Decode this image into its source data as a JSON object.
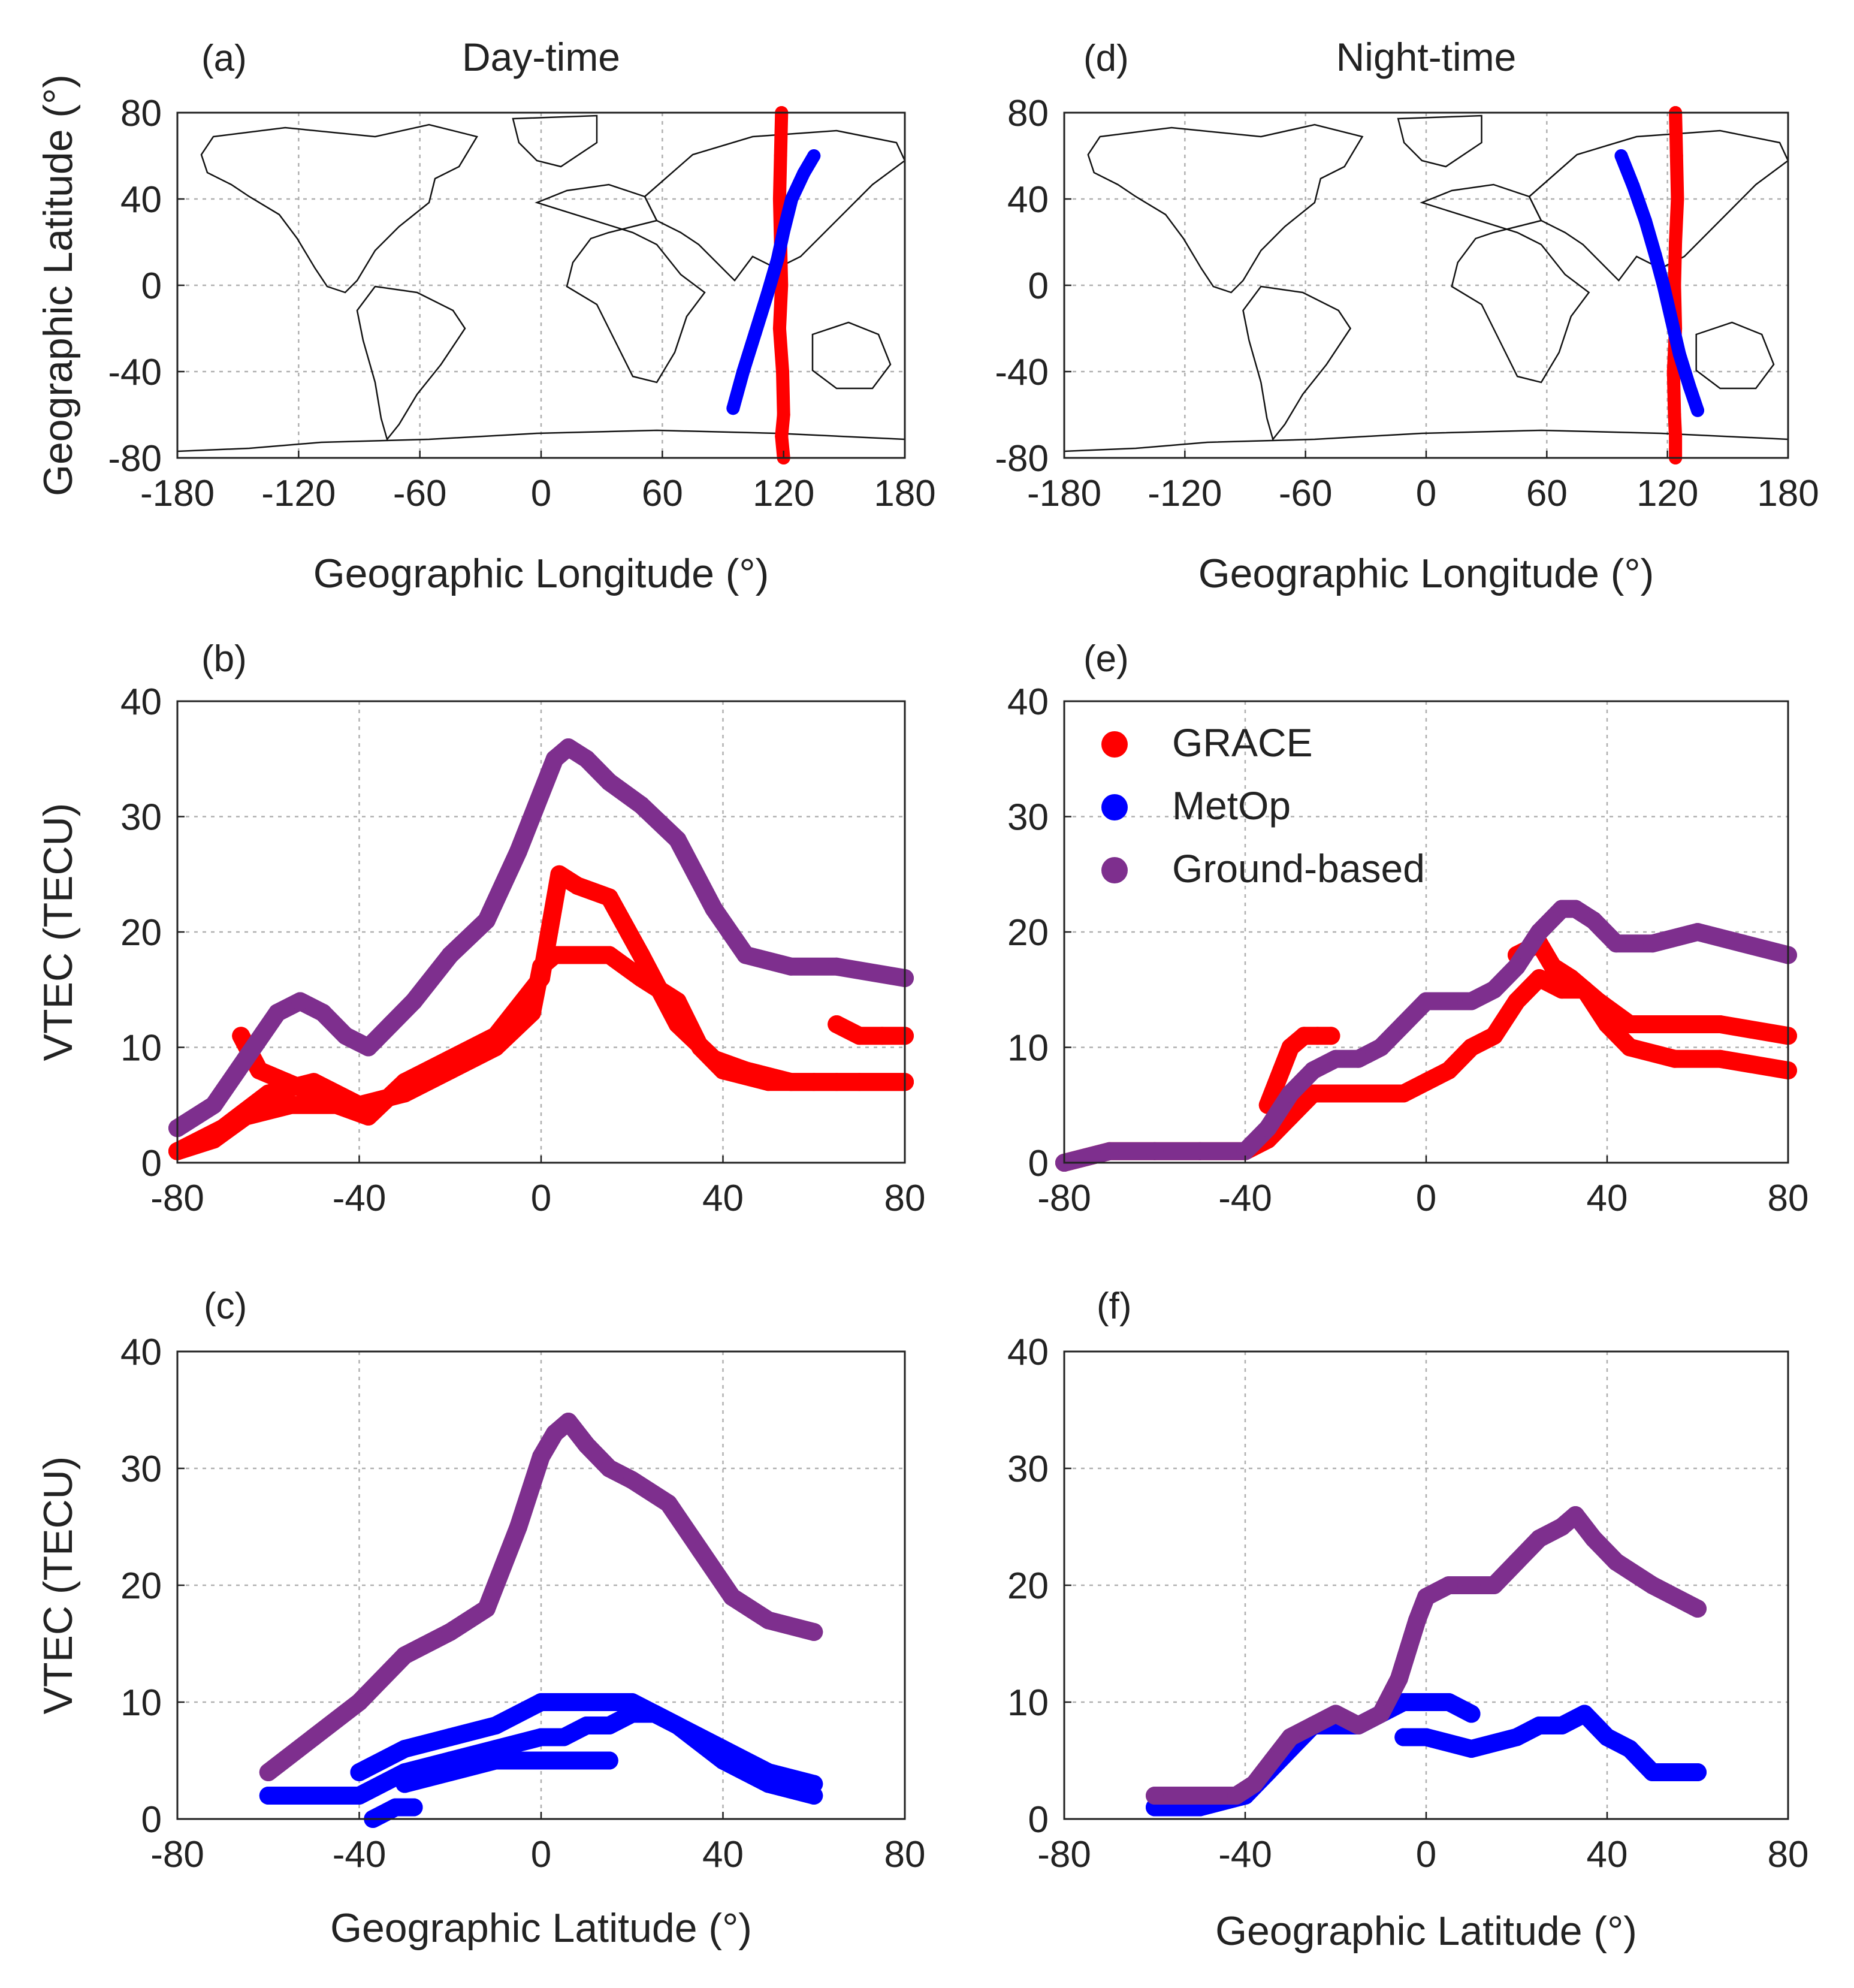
{
  "figure": {
    "colors": {
      "grace": "#ff0000",
      "metop": "#0000ff",
      "ground": "#7e2f8e",
      "grid": "#b0b0b0",
      "axis": "#222222",
      "coast": "#111111"
    }
  },
  "legend": {
    "items": [
      {
        "label": "GRACE",
        "series_key": "grace"
      },
      {
        "label": "MetOp",
        "series_key": "metop"
      },
      {
        "label": "Ground-based",
        "series_key": "ground"
      }
    ]
  },
  "chart_data": [
    {
      "id": "a",
      "panel_label": "(a)",
      "title": "Day-time",
      "type": "scatter",
      "xlabel": "Geographic Longitude (°)",
      "ylabel": "Geographic Latitude (°)",
      "xlim": [
        -180,
        180
      ],
      "ylim": [
        -80,
        80
      ],
      "xticks": [
        -180,
        -120,
        -60,
        0,
        60,
        120,
        180
      ],
      "yticks": [
        -80,
        -40,
        0,
        40,
        80
      ],
      "map": "world-coastline",
      "grid": true,
      "series": [
        {
          "name": "GRACE",
          "key": "grace",
          "x": [
            119,
            118.5,
            118,
            118.5,
            119,
            118,
            119.5,
            120,
            119,
            120
          ],
          "y": [
            80,
            60,
            40,
            20,
            0,
            -20,
            -40,
            -60,
            -70,
            -80
          ]
        },
        {
          "name": "MetOp",
          "key": "metop",
          "x": [
            95,
            100,
            106,
            112,
            117,
            120,
            124,
            130,
            135
          ],
          "y": [
            -57,
            -40,
            -22,
            -4,
            12,
            25,
            40,
            52,
            60
          ]
        }
      ]
    },
    {
      "id": "b",
      "panel_label": "(b)",
      "title": "",
      "type": "scatter",
      "xlabel": "",
      "ylabel": "VTEC (TECU)",
      "xlim": [
        -80,
        80
      ],
      "ylim": [
        0,
        40
      ],
      "xticks": [
        -80,
        -40,
        0,
        40,
        80
      ],
      "yticks": [
        0,
        10,
        20,
        30,
        40
      ],
      "grid": true,
      "series": [
        {
          "name": "GRACE",
          "key": "grace",
          "lines": [
            {
              "x": [
                -80,
                -72,
                -65,
                -55,
                -45,
                -38,
                -30,
                -20,
                -10,
                0,
                4,
                8,
                15,
                22,
                30,
                38,
                45,
                55,
                65,
                80
              ],
              "y": [
                1,
                2,
                4,
                5,
                5,
                4,
                7,
                9,
                11,
                16,
                25,
                24,
                23,
                18,
                12,
                9,
                8,
                7,
                7,
                7
              ]
            },
            {
              "x": [
                -80,
                -70,
                -60,
                -50,
                -40,
                -30,
                -20,
                -10,
                -2,
                0,
                3,
                8,
                15,
                22,
                30,
                35,
                40,
                50,
                60,
                70,
                80
              ],
              "y": [
                1,
                3,
                6,
                7,
                5,
                6,
                8,
                10,
                13,
                17,
                18,
                18,
                18,
                16,
                14,
                10,
                8,
                7,
                7,
                7,
                7
              ]
            },
            {
              "x": [
                -66,
                -62,
                -56,
                -50
              ],
              "y": [
                11,
                8,
                7,
                6
              ]
            },
            {
              "x": [
                65,
                70,
                75,
                80
              ],
              "y": [
                12,
                11,
                11,
                11
              ]
            }
          ]
        },
        {
          "name": "Ground-based",
          "key": "ground",
          "lines": [
            {
              "x": [
                -80,
                -72,
                -65,
                -58,
                -53,
                -48,
                -43,
                -38,
                -33,
                -28,
                -20,
                -12,
                -5,
                0,
                3,
                6,
                10,
                15,
                22,
                30,
                38,
                45,
                55,
                65,
                80
              ],
              "y": [
                3,
                5,
                9,
                13,
                14,
                13,
                11,
                10,
                12,
                14,
                18,
                21,
                27,
                32,
                35,
                36,
                35,
                33,
                31,
                28,
                22,
                18,
                17,
                17,
                16
              ]
            }
          ]
        }
      ]
    },
    {
      "id": "c",
      "panel_label": "(c)",
      "title": "",
      "type": "scatter",
      "xlabel": "Geographic Latitude (°)",
      "ylabel": "VTEC (TECU)",
      "xlim": [
        -80,
        80
      ],
      "ylim": [
        0,
        40
      ],
      "xticks": [
        -80,
        -40,
        0,
        40,
        80
      ],
      "yticks": [
        0,
        10,
        20,
        30,
        40
      ],
      "grid": true,
      "series": [
        {
          "name": "MetOp",
          "key": "metop",
          "lines": [
            {
              "x": [
                -60,
                -55,
                -50,
                -45,
                -40,
                -30,
                -20,
                -10,
                0,
                5,
                10,
                15,
                20,
                25,
                30,
                40,
                50,
                60
              ],
              "y": [
                2,
                2,
                2,
                2,
                2,
                4,
                5,
                6,
                7,
                7,
                8,
                8,
                9,
                9,
                8,
                5,
                3,
                2
              ]
            },
            {
              "x": [
                -40,
                -30,
                -20,
                -10,
                0,
                5,
                10,
                15,
                20,
                25,
                30,
                40,
                50,
                60
              ],
              "y": [
                4,
                6,
                7,
                8,
                10,
                10,
                10,
                10,
                10,
                9,
                8,
                6,
                4,
                3
              ]
            },
            {
              "x": [
                -37,
                -32,
                -28
              ],
              "y": [
                0,
                1,
                1
              ]
            },
            {
              "x": [
                -30,
                -20,
                -10,
                0,
                5,
                10,
                15
              ],
              "y": [
                3,
                4,
                5,
                5,
                5,
                5,
                5
              ]
            }
          ]
        },
        {
          "name": "Ground-based",
          "key": "ground",
          "lines": [
            {
              "x": [
                -60,
                -50,
                -40,
                -30,
                -20,
                -12,
                -5,
                0,
                3,
                6,
                10,
                15,
                20,
                28,
                35,
                42,
                50,
                60
              ],
              "y": [
                4,
                7,
                10,
                14,
                16,
                18,
                25,
                31,
                33,
                34,
                32,
                30,
                29,
                27,
                23,
                19,
                17,
                16
              ]
            }
          ]
        }
      ]
    },
    {
      "id": "d",
      "panel_label": "(d)",
      "title": "Night-time",
      "type": "scatter",
      "xlabel": "Geographic Longitude (°)",
      "ylabel": "",
      "xlim": [
        -180,
        180
      ],
      "ylim": [
        -80,
        80
      ],
      "xticks": [
        -180,
        -120,
        -60,
        0,
        60,
        120,
        180
      ],
      "yticks": [
        -80,
        -40,
        0,
        40,
        80
      ],
      "map": "world-coastline",
      "grid": true,
      "series": [
        {
          "name": "GRACE",
          "key": "grace",
          "x": [
            124,
            124.5,
            125,
            124,
            123.5,
            124,
            123,
            123.5,
            124,
            124
          ],
          "y": [
            80,
            60,
            40,
            20,
            0,
            -20,
            -40,
            -60,
            -70,
            -80
          ]
        },
        {
          "name": "MetOp",
          "key": "metop",
          "x": [
            97,
            103,
            109,
            114,
            118,
            122,
            126,
            131,
            135
          ],
          "y": [
            60,
            46,
            30,
            14,
            0,
            -16,
            -32,
            -47,
            -58
          ]
        }
      ]
    },
    {
      "id": "e",
      "panel_label": "(e)",
      "title": "",
      "type": "scatter",
      "xlabel": "",
      "ylabel": "",
      "xlim": [
        -80,
        80
      ],
      "ylim": [
        0,
        40
      ],
      "xticks": [
        -80,
        -40,
        0,
        40,
        80
      ],
      "yticks": [
        0,
        10,
        20,
        30,
        40
      ],
      "grid": true,
      "series": [
        {
          "name": "GRACE",
          "key": "grace",
          "lines": [
            {
              "x": [
                -80,
                -70,
                -60,
                -50,
                -40,
                -35,
                -30,
                -25,
                -20,
                -15,
                -10,
                -5,
                0,
                5,
                10,
                15,
                20,
                25,
                30,
                35,
                40,
                45,
                55,
                65,
                80
              ],
              "y": [
                0,
                1,
                1,
                1,
                1,
                2,
                4,
                6,
                6,
                6,
                6,
                6,
                7,
                8,
                10,
                11,
                14,
                16,
                15,
                15,
                12,
                10,
                9,
                9,
                8
              ]
            },
            {
              "x": [
                -35,
                -32,
                -30,
                -27,
                -24,
                -21
              ],
              "y": [
                5,
                8,
                10,
                11,
                11,
                11
              ]
            },
            {
              "x": [
                20,
                25,
                28,
                32,
                38,
                45,
                55,
                65,
                80
              ],
              "y": [
                18,
                19,
                17,
                16,
                14,
                12,
                12,
                12,
                11
              ]
            }
          ]
        },
        {
          "name": "Ground-based",
          "key": "ground",
          "lines": [
            {
              "x": [
                -80,
                -70,
                -60,
                -50,
                -40,
                -35,
                -30,
                -25,
                -20,
                -15,
                -10,
                -5,
                0,
                5,
                10,
                15,
                20,
                25,
                30,
                33,
                37,
                42,
                50,
                60,
                70,
                80
              ],
              "y": [
                0,
                1,
                1,
                1,
                1,
                3,
                6,
                8,
                9,
                9,
                10,
                12,
                14,
                14,
                14,
                15,
                17,
                20,
                22,
                22,
                21,
                19,
                19,
                20,
                19,
                18
              ]
            }
          ]
        }
      ]
    },
    {
      "id": "f",
      "panel_label": "(f)",
      "title": "",
      "type": "scatter",
      "xlabel": "Geographic Latitude (°)",
      "ylabel": "",
      "xlim": [
        -80,
        80
      ],
      "ylim": [
        0,
        40
      ],
      "xticks": [
        -80,
        -40,
        0,
        40,
        80
      ],
      "yticks": [
        0,
        10,
        20,
        30,
        40
      ],
      "grid": true,
      "series": [
        {
          "name": "MetOp",
          "key": "metop",
          "lines": [
            {
              "x": [
                -60,
                -50,
                -40,
                -35,
                -30,
                -25,
                -20,
                -15,
                -10,
                -5,
                0,
                5,
                10
              ],
              "y": [
                1,
                1,
                2,
                4,
                6,
                8,
                8,
                8,
                9,
                10,
                10,
                10,
                9
              ]
            },
            {
              "x": [
                -5,
                0,
                10,
                20,
                25,
                30,
                35,
                40,
                45,
                50,
                60
              ],
              "y": [
                7,
                7,
                6,
                7,
                8,
                8,
                9,
                7,
                6,
                4,
                4
              ]
            }
          ]
        },
        {
          "name": "Ground-based",
          "key": "ground",
          "lines": [
            {
              "x": [
                -60,
                -50,
                -42,
                -38,
                -34,
                -30,
                -25,
                -20,
                -15,
                -10,
                -6,
                -2,
                0,
                5,
                10,
                15,
                20,
                25,
                30,
                33,
                37,
                42,
                50,
                60
              ],
              "y": [
                2,
                2,
                2,
                3,
                5,
                7,
                8,
                9,
                8,
                9,
                12,
                17,
                19,
                20,
                20,
                20,
                22,
                24,
                25,
                26,
                24,
                22,
                20,
                18
              ]
            }
          ]
        }
      ]
    }
  ]
}
